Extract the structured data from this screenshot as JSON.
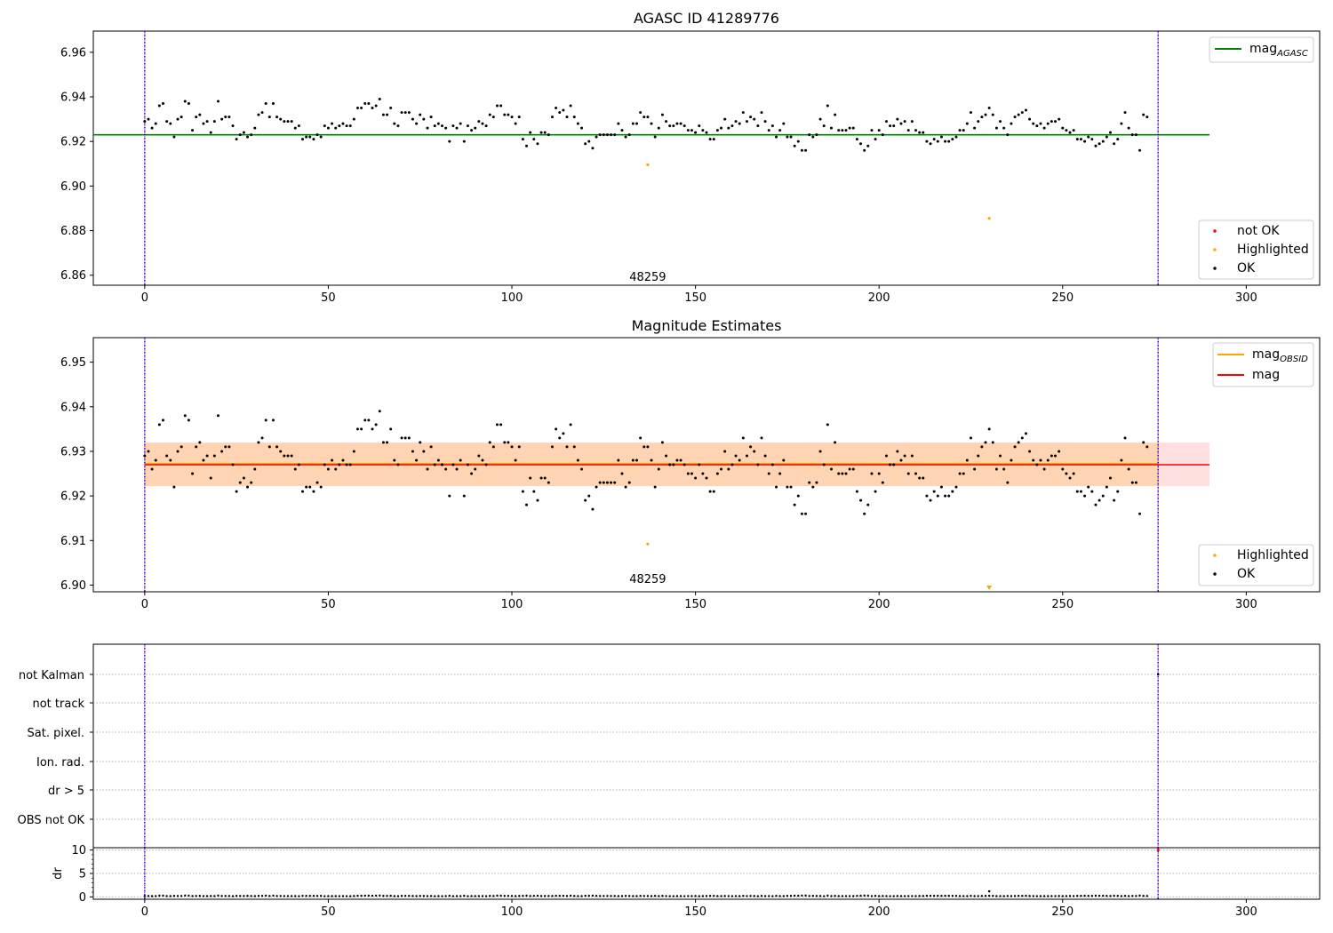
{
  "chart_data": [
    {
      "type": "scatter",
      "title": "AGASC ID 41289776",
      "xlim": [
        -14,
        320
      ],
      "ylim": [
        6.8555,
        6.9695
      ],
      "xticks": [
        "0",
        "50",
        "100",
        "150",
        "200",
        "250",
        "300"
      ],
      "yticks": [
        "6.86",
        "6.88",
        "6.90",
        "6.92",
        "6.94",
        "6.96"
      ],
      "obsid_label": "48259",
      "mag_agasc": 6.923,
      "highlighted_points": [
        [
          137,
          6.9095
        ],
        [
          230,
          6.8855
        ]
      ],
      "legend_lines": [
        {
          "label": "mag",
          "sub": "AGASC",
          "color": "#008000"
        }
      ],
      "legend_points": [
        {
          "label": "not OK",
          "color": "#ff0000"
        },
        {
          "label": "Highlighted",
          "color": "#ffa500"
        },
        {
          "label": "OK",
          "color": "#000000"
        }
      ],
      "grid": false,
      "legend_position": "upper right / lower right"
    },
    {
      "type": "scatter",
      "title": "Magnitude Estimates",
      "xlim": [
        -14,
        320
      ],
      "ylim": [
        6.8985,
        6.9555
      ],
      "xticks": [
        "0",
        "50",
        "100",
        "150",
        "200",
        "250",
        "300"
      ],
      "yticks": [
        "6.90",
        "6.91",
        "6.92",
        "6.93",
        "6.94",
        "6.95"
      ],
      "obsid_label": "48259",
      "mag": 6.927,
      "mag_obsid": 6.9272,
      "band_mag": [
        6.9222,
        6.932
      ],
      "band_obsid": [
        6.9222,
        6.9319
      ],
      "highlighted_points": [
        [
          137,
          6.9092
        ]
      ],
      "offscale_marker": [
        230,
        6.8995
      ],
      "legend_lines": [
        {
          "label": "mag",
          "sub": "OBSID",
          "color": "#ffa500"
        },
        {
          "label": "mag",
          "sub": "",
          "color": "#ff0000"
        }
      ],
      "legend_points": [
        {
          "label": "Highlighted",
          "color": "#ffa500"
        },
        {
          "label": "OK",
          "color": "#000000"
        }
      ],
      "grid": false,
      "legend_position": "upper right / lower right"
    },
    {
      "type": "scatter",
      "xlim": [
        -14,
        320
      ],
      "flag_labels": [
        "not Kalman",
        "not track",
        "Sat. pixel.",
        "Ion. rad.",
        "dr > 5",
        "OBS not OK"
      ],
      "grid": true
    },
    {
      "type": "scatter",
      "ylabel": "dr",
      "xlim": [
        -14,
        320
      ],
      "ylim": [
        -0.5,
        10.5
      ],
      "yticks": [
        "0",
        "5",
        "10"
      ],
      "xticks": [
        "0",
        "50",
        "100",
        "150",
        "200",
        "250",
        "300"
      ],
      "dr_outlier": [
        230,
        1.2
      ],
      "dr_endpoint": [
        276,
        10
      ],
      "grid": true
    }
  ],
  "shared": {
    "obsid_boundaries": [
      0,
      276
    ],
    "line_x_range": [
      0,
      290
    ],
    "n_samples": 276
  },
  "series_levels": {
    "top_mag": [
      6.929,
      6.93,
      6.926,
      6.928,
      6.936,
      6.937,
      6.929,
      6.928,
      6.922,
      6.93,
      6.931,
      6.938,
      6.937,
      6.925,
      6.931,
      6.932,
      6.928,
      6.929,
      6.924,
      6.929,
      6.938,
      6.93,
      6.931,
      6.931,
      6.927,
      6.921,
      6.923,
      6.924,
      6.922,
      6.923,
      6.926,
      6.932,
      6.933,
      6.937,
      6.931,
      6.937,
      6.931,
      6.93,
      6.929,
      6.929,
      6.929,
      6.926,
      6.927,
      6.921,
      6.922,
      6.922,
      6.921,
      6.923,
      6.922,
      6.927,
      6.926,
      6.928,
      6.926,
      6.927,
      6.928,
      6.927,
      6.927,
      6.93,
      6.935,
      6.935,
      6.937,
      6.937,
      6.935,
      6.936,
      6.939,
      6.932,
      6.932,
      6.935,
      6.928,
      6.927,
      6.933,
      6.933,
      6.933,
      6.93,
      6.928,
      6.932,
      6.93,
      6.926,
      6.931,
      6.927,
      6.928,
      6.927,
      6.926,
      6.92,
      6.927,
      6.926,
      6.928,
      6.92,
      6.927,
      6.925,
      6.926,
      6.929,
      6.928,
      6.927,
      6.932,
      6.931,
      6.936,
      6.936,
      6.932,
      6.932,
      6.931,
      6.928,
      6.931,
      6.921,
      6.918,
      6.924,
      6.921,
      6.919,
      6.924,
      6.924,
      6.923,
      6.931,
      6.935,
      6.933,
      6.934,
      6.931,
      6.936,
      6.931,
      6.928,
      6.926,
      6.919,
      6.92,
      6.917,
      6.922,
      6.923,
      6.923,
      6.923,
      6.923,
      6.923,
      6.928,
      6.925,
      6.922,
      6.923,
      6.928,
      6.928,
      6.933,
      6.931,
      6.931,
      6.928,
      6.922,
      6.926,
      6.932,
      6.929,
      6.927,
      6.927,
      6.928,
      6.928,
      6.927,
      6.925,
      6.925,
      6.924,
      6.927,
      6.925,
      6.924,
      6.921,
      6.921,
      6.925,
      6.926,
      6.93,
      6.926,
      6.927,
      6.929,
      6.928,
      6.933,
      6.929,
      6.931,
      6.93,
      6.927,
      6.933,
      6.929,
      6.925,
      6.927,
      6.922,
      6.925,
      6.928,
      6.922,
      6.922,
      6.918,
      6.92,
      6.916,
      6.916,
      6.923,
      6.922,
      6.923,
      6.93,
      6.927,
      6.936,
      6.926,
      6.932,
      6.925,
      6.925,
      6.925,
      6.926,
      6.926,
      6.921,
      6.919,
      6.916,
      6.918,
      6.925,
      6.921,
      6.925,
      6.923,
      6.929,
      6.927,
      6.927,
      6.93,
      6.928,
      6.929,
      6.925,
      6.929,
      6.925,
      6.924,
      6.924,
      6.92,
      6.919,
      6.921,
      6.92,
      6.922,
      6.92,
      6.92,
      6.921,
      6.922,
      6.925,
      6.925,
      6.928,
      6.933,
      6.926,
      6.929,
      6.931,
      6.932,
      6.935,
      6.932,
      6.926,
      6.929,
      6.926,
      6.923,
      6.928,
      6.931,
      6.932,
      6.933,
      6.934,
      6.93,
      6.928,
      6.927,
      6.928,
      6.926,
      6.928,
      6.929,
      6.929,
      6.93,
      6.926,
      6.925,
      6.924,
      6.925,
      6.921,
      6.921,
      6.92,
      6.922,
      6.921,
      6.918,
      6.919,
      6.92,
      6.922,
      6.924,
      6.919,
      6.921,
      6.928,
      6.933,
      6.926,
      6.923,
      6.923,
      6.916,
      6.932,
      6.931
    ]
  }
}
